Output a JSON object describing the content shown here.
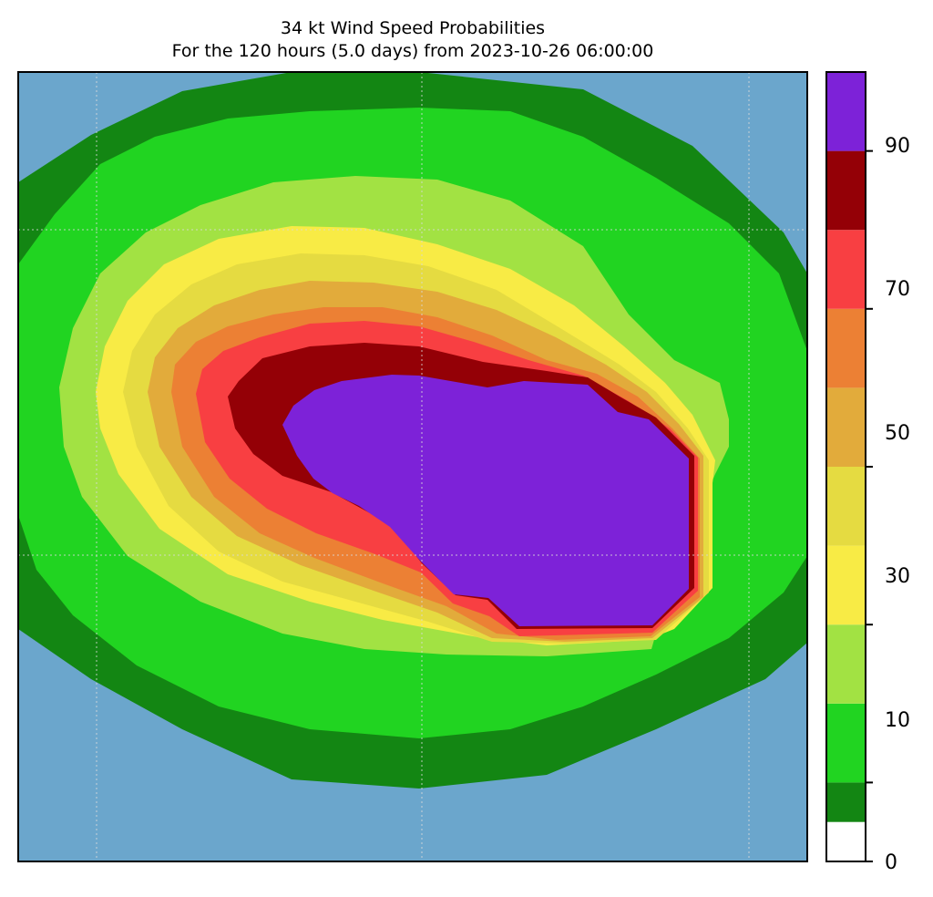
{
  "title": {
    "line1": "34 kt Wind Speed Probabilities",
    "line2": "For the 120 hours (5.0 days) from 2023-10-26 06:00:00"
  },
  "colorbar": {
    "min": 0,
    "max": 100,
    "tick_labels": [
      "0",
      "10",
      "30",
      "50",
      "70",
      "90"
    ],
    "bins": [
      {
        "from": 0,
        "to": 5,
        "color": "#ffffff"
      },
      {
        "from": 5,
        "to": 10,
        "color": "#138613"
      },
      {
        "from": 10,
        "to": 20,
        "color": "#21d421"
      },
      {
        "from": 20,
        "to": 30,
        "color": "#a2e243"
      },
      {
        "from": 30,
        "to": 40,
        "color": "#f8eb45"
      },
      {
        "from": 40,
        "to": 50,
        "color": "#e5db41"
      },
      {
        "from": 50,
        "to": 60,
        "color": "#e2ab3b"
      },
      {
        "from": 60,
        "to": 70,
        "color": "#ec8034"
      },
      {
        "from": 70,
        "to": 80,
        "color": "#f83f42"
      },
      {
        "from": 80,
        "to": 90,
        "color": "#940006"
      },
      {
        "from": 90,
        "to": 100,
        "color": "#7d22d8"
      }
    ]
  },
  "map": {
    "background_color": "#6ba6cc",
    "gridlines": "dotted"
  }
}
